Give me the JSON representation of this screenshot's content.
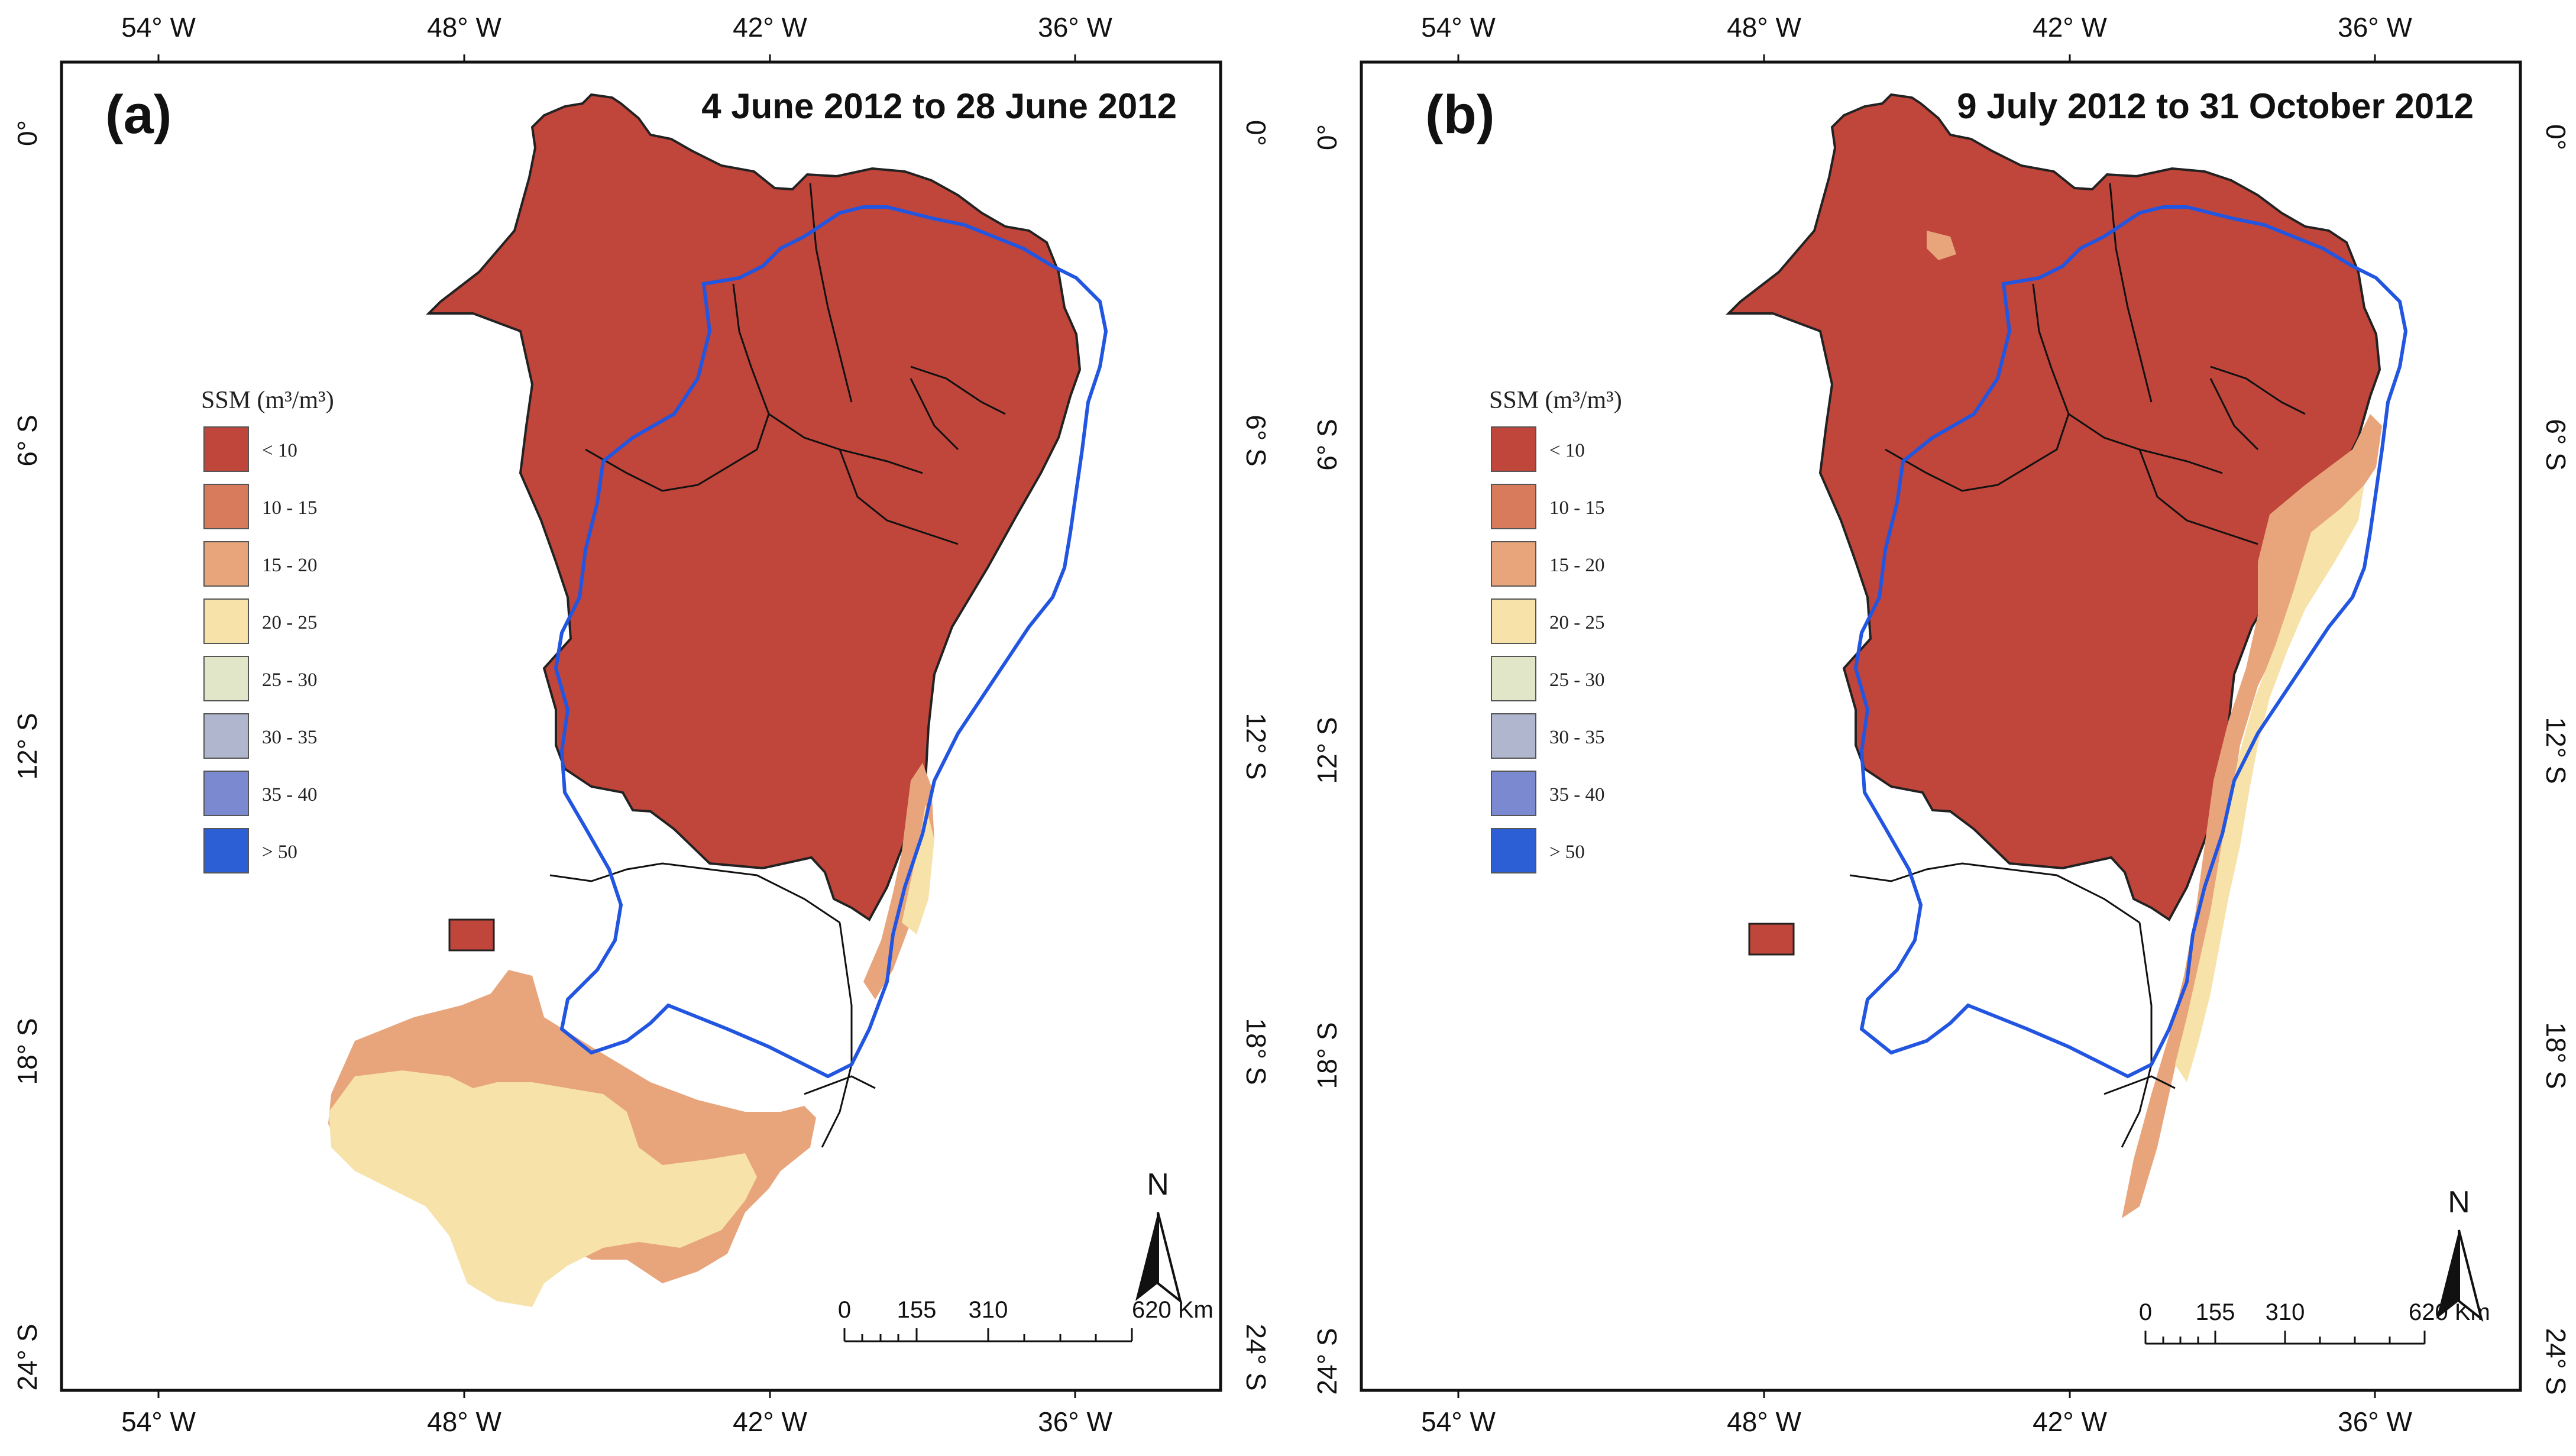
{
  "colors": {
    "lt10": "#c0453a",
    "10-15": "#d87a5c",
    "15-20": "#e8a57c",
    "20-25": "#f7e2a9",
    "25-30": "#e2e6c9",
    "30-35": "#b1b6cf",
    "35-40": "#7b8ad0",
    "gt50": "#2c5fd6",
    "boundary_blue": "#2255e0",
    "state_line": "#111111"
  },
  "legend": {
    "title": "SSM (m³/m³)",
    "items": [
      {
        "label": "< 10",
        "color_key": "lt10"
      },
      {
        "label": "10 - 15",
        "color_key": "10-15"
      },
      {
        "label": "15 - 20",
        "color_key": "15-20"
      },
      {
        "label": "20 - 25",
        "color_key": "20-25"
      },
      {
        "label": "25 - 30",
        "color_key": "25-30"
      },
      {
        "label": "30 - 35",
        "color_key": "30-35"
      },
      {
        "label": "35 - 40",
        "color_key": "35-40"
      },
      {
        "label": "> 50",
        "color_key": "gt50"
      }
    ]
  },
  "axes": {
    "longitudes": [
      "54° W",
      "48° W",
      "42° W",
      "36° W"
    ],
    "latitudes": [
      "0°",
      "6° S",
      "12° S",
      "18° S",
      "24° S"
    ]
  },
  "scale_bar": {
    "labels": [
      "0",
      "155",
      "310",
      "620 Km"
    ]
  },
  "north_label": "N",
  "panels": [
    {
      "letter": "(a)",
      "dates": "4 June 2012 to 28 June 2012"
    },
    {
      "letter": "(b)",
      "dates": "9 July 2012 to 31 October 2012"
    }
  ]
}
